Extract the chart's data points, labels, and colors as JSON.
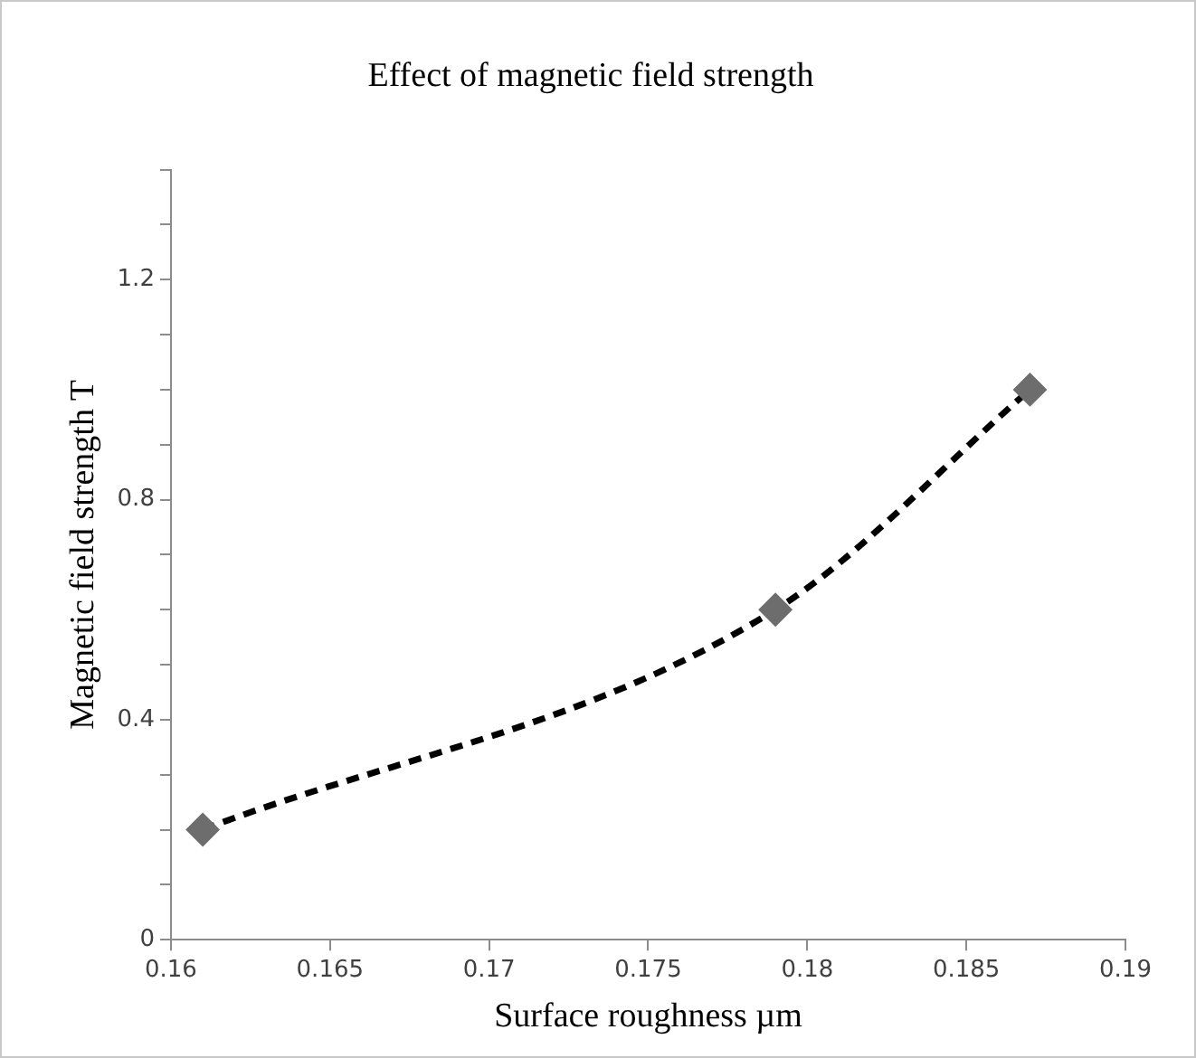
{
  "chart_data": {
    "type": "line",
    "title": "Effect of magnetic field strength",
    "xlabel": "Surface roughness µm",
    "ylabel": "Magnetic field strength T",
    "x": [
      0.161,
      0.179,
      0.187
    ],
    "series": [
      {
        "color": "#000000",
        "colors": [
          "#6d6d6d",
          "#6d6d6d",
          "#6d6d6d"
        ],
        "values": [
          0.2,
          0.6,
          1.0
        ]
      }
    ],
    "xlim": [
      0.16,
      0.19
    ],
    "xticks": [
      0.16,
      0.165,
      0.17,
      0.175,
      0.18,
      0.185,
      0.19
    ],
    "ylim": [
      0,
      1.4
    ],
    "yticks": [
      0,
      {
        "value": 0.1,
        "label": null
      },
      {
        "value": 0.2,
        "label": null
      },
      {
        "value": 0.3,
        "label": null
      },
      0.4,
      {
        "value": 0.5,
        "label": null
      },
      {
        "value": 0.6,
        "label": null
      },
      {
        "value": 0.7,
        "label": null
      },
      0.8,
      {
        "value": 0.9,
        "label": null
      },
      {
        "value": 1.0,
        "label": null
      },
      {
        "value": 1.1,
        "label": null
      },
      1.2,
      {
        "value": 1.3,
        "label": null
      },
      {
        "value": 1.4,
        "label": null
      }
    ],
    "grid": false,
    "legend": false,
    "marker": "diamond",
    "line_style": "dashed"
  }
}
